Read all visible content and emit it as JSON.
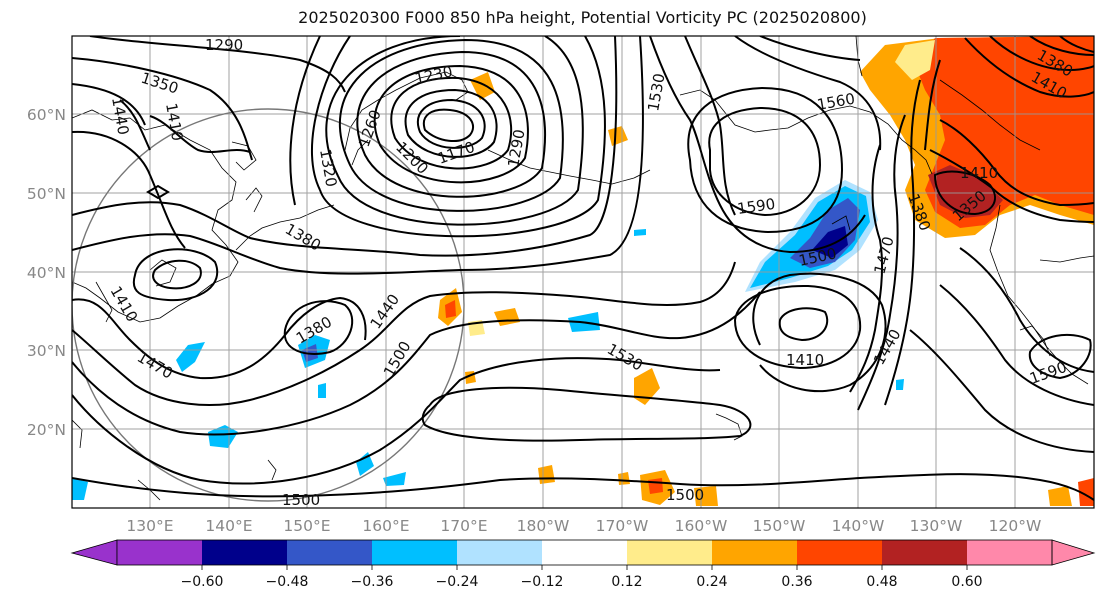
{
  "title": "2025020300 F000 850 hPa height, Potential Vorticity PC (2025020800)",
  "lon_ticks": [
    "130°E",
    "140°E",
    "150°E",
    "160°E",
    "170°E",
    "180°W",
    "170°W",
    "160°W",
    "150°W",
    "140°W",
    "130°W",
    "120°W"
  ],
  "lat_ticks": [
    "60°N",
    "50°N",
    "40°N",
    "30°N",
    "20°N"
  ],
  "contour_labels": [
    "1290",
    "1350",
    "1440",
    "1410",
    "1230",
    "1260",
    "1200",
    "1170",
    "1320",
    "1290",
    "1380",
    "1410",
    "1470",
    "1380",
    "1440",
    "1500",
    "1530",
    "1560",
    "1530",
    "1590",
    "1500",
    "1470",
    "1410",
    "1440",
    "1380",
    "1410",
    "1350",
    "1590",
    "1500",
    "1500",
    "1380",
    "1410"
  ],
  "colorbar": {
    "labels": [
      "−0.60",
      "−0.48",
      "−0.36",
      "−0.24",
      "−0.12",
      "0.12",
      "0.24",
      "0.36",
      "0.48",
      "0.60"
    ],
    "colors": [
      "#9932cc",
      "#00008b",
      "#3457c8",
      "#00bfff",
      "#b0e2ff",
      "#ffffff",
      "#ffec8b",
      "#ffa500",
      "#ff4500",
      "#b22222",
      "#ff88aa"
    ]
  }
}
